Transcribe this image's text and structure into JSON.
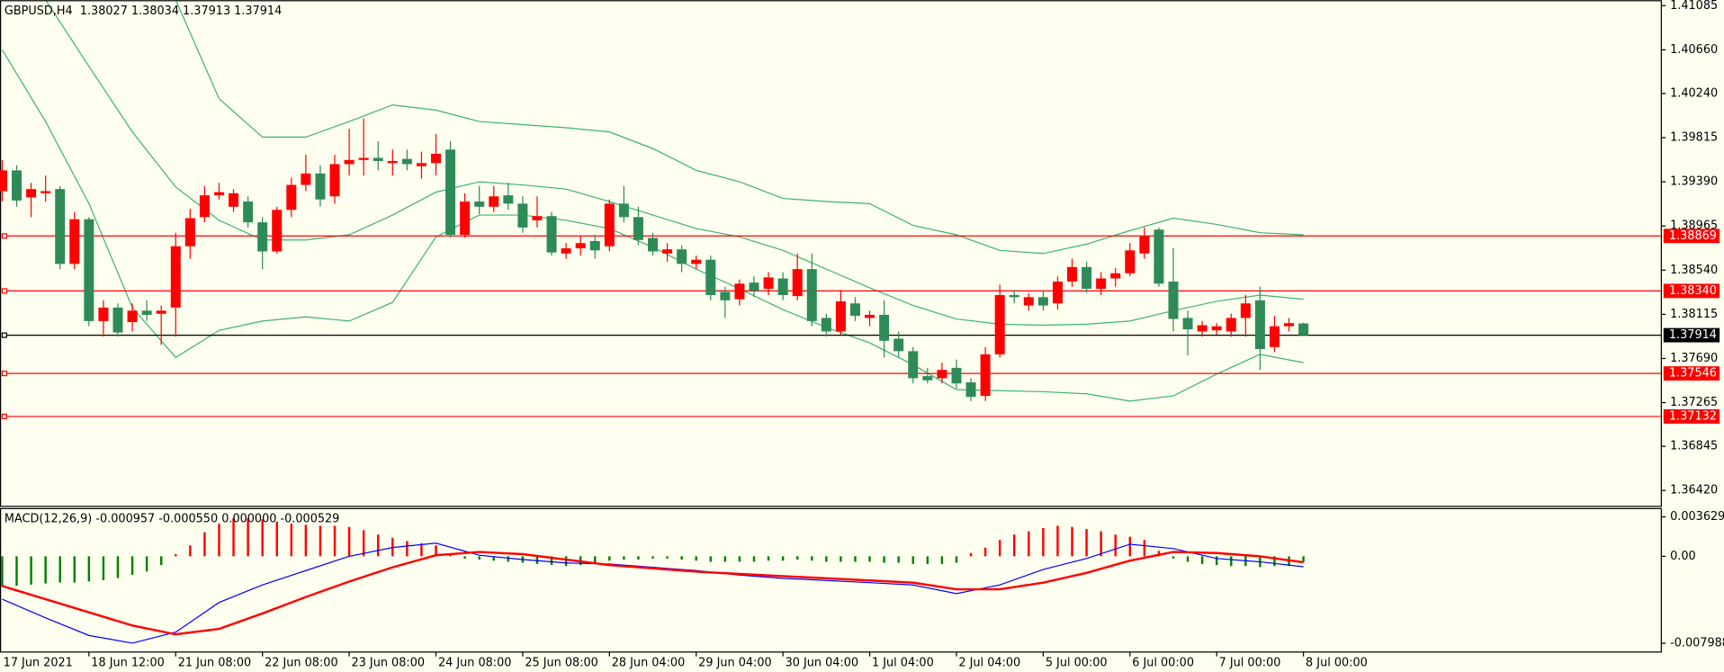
{
  "chart_data": [
    {
      "type": "candlestick",
      "title": "GBPUSD,H4  1.38027 1.38034 1.37913 1.37914",
      "categories": [
        "17 Jun 2021",
        null,
        null,
        null,
        null,
        null,
        "18 Jun 12:00",
        null,
        null,
        null,
        null,
        null,
        "21 Jun 08:00",
        null,
        null,
        null,
        null,
        null,
        "22 Jun 08:00",
        null,
        null,
        null,
        null,
        null,
        "23 Jun 08:00",
        null,
        null,
        null,
        null,
        null,
        "24 Jun 08:00",
        null,
        null,
        null,
        null,
        null,
        "25 Jun 08:00",
        null,
        null,
        null,
        null,
        null,
        "28 Jun 04:00",
        null,
        null,
        null,
        null,
        null,
        "29 Jun 04:00",
        null,
        null,
        null,
        null,
        null,
        "30 Jun 04:00",
        null,
        null,
        null,
        null,
        null,
        "1 Jul 04:00",
        null,
        null,
        null,
        null,
        null,
        "2 Jul 04:00",
        null,
        null,
        null,
        null,
        null,
        "5 Jul 00:00",
        null,
        null,
        null,
        null,
        null,
        "6 Jul 00:00",
        null,
        null,
        null,
        null,
        null,
        "7 Jul 00:00",
        null,
        null,
        null,
        null,
        null,
        "8 Jul 00:00"
      ],
      "open": [
        1.393,
        1.395,
        1.3924,
        1.3928,
        1.3932,
        1.386,
        1.3903,
        1.3805,
        1.3818,
        1.3804,
        1.3815,
        1.3812,
        1.3818,
        1.3877,
        1.3905,
        1.3926,
        1.3915,
        1.392,
        1.39,
        1.3872,
        1.3912,
        1.3936,
        1.3947,
        1.3925,
        1.3956,
        1.396,
        1.3962,
        1.3957,
        1.3961,
        1.3954,
        1.3957,
        1.397,
        1.3888,
        1.392,
        1.3915,
        1.3926,
        1.3918,
        1.3902,
        1.3906,
        1.387,
        1.3875,
        1.3882,
        1.3877,
        1.3918,
        1.3905,
        1.3885,
        1.387,
        1.3874,
        1.386,
        1.3864,
        1.3833,
        1.3826,
        1.3842,
        1.3836,
        1.3846,
        1.3829,
        1.3855,
        1.3808,
        1.3795,
        1.3822,
        1.3808,
        1.3811,
        1.3788,
        1.3776,
        1.3752,
        1.375,
        1.376,
        1.3746,
        1.3733,
        1.3773,
        1.383,
        1.382,
        1.3828,
        1.3822,
        1.3843,
        1.3857,
        1.3836,
        1.3846,
        1.3851,
        1.387,
        1.3893,
        1.3843,
        1.3808,
        1.3795,
        1.3796,
        1.3795,
        1.3808,
        1.3825,
        1.378,
        1.38,
        1.38027
      ],
      "high": [
        1.396,
        1.3955,
        1.3938,
        1.3945,
        1.3935,
        1.391,
        1.3905,
        1.3825,
        1.3822,
        1.3822,
        1.3825,
        1.382,
        1.389,
        1.3913,
        1.3935,
        1.3938,
        1.3932,
        1.3925,
        1.3905,
        1.3915,
        1.3943,
        1.3965,
        1.3955,
        1.3965,
        1.399,
        1.4,
        1.3978,
        1.397,
        1.397,
        1.3968,
        1.3985,
        1.3978,
        1.3928,
        1.3935,
        1.3935,
        1.3938,
        1.3925,
        1.3925,
        1.391,
        1.388,
        1.3887,
        1.3888,
        1.3922,
        1.3935,
        1.3915,
        1.389,
        1.388,
        1.3878,
        1.3868,
        1.3868,
        1.3838,
        1.3845,
        1.3848,
        1.3852,
        1.3852,
        1.387,
        1.387,
        1.3812,
        1.3835,
        1.3828,
        1.3815,
        1.3825,
        1.3795,
        1.378,
        1.376,
        1.3765,
        1.3768,
        1.375,
        1.378,
        1.384,
        1.3835,
        1.3832,
        1.3834,
        1.3848,
        1.3865,
        1.3862,
        1.3852,
        1.3856,
        1.388,
        1.3895,
        1.3895,
        1.3875,
        1.3815,
        1.3805,
        1.3803,
        1.3812,
        1.383,
        1.3838,
        1.381,
        1.3808,
        1.38034
      ],
      "low": [
        1.392,
        1.3915,
        1.3905,
        1.392,
        1.3855,
        1.3855,
        1.38,
        1.379,
        1.379,
        1.3795,
        1.3805,
        1.3782,
        1.379,
        1.3865,
        1.39,
        1.3922,
        1.391,
        1.3895,
        1.3855,
        1.387,
        1.3905,
        1.393,
        1.3915,
        1.3918,
        1.3945,
        1.3945,
        1.395,
        1.3945,
        1.395,
        1.3942,
        1.3945,
        1.3885,
        1.3885,
        1.3908,
        1.391,
        1.3912,
        1.389,
        1.3895,
        1.3868,
        1.3865,
        1.3868,
        1.3865,
        1.3872,
        1.39,
        1.3878,
        1.3868,
        1.3862,
        1.3852,
        1.3855,
        1.3825,
        1.3808,
        1.382,
        1.3828,
        1.383,
        1.3825,
        1.3825,
        1.38,
        1.379,
        1.3792,
        1.3805,
        1.38,
        1.377,
        1.377,
        1.3745,
        1.3745,
        1.3745,
        1.374,
        1.3728,
        1.3728,
        1.377,
        1.3822,
        1.3815,
        1.3815,
        1.3816,
        1.3838,
        1.3832,
        1.383,
        1.3838,
        1.3848,
        1.3865,
        1.3838,
        1.3795,
        1.3772,
        1.379,
        1.3792,
        1.379,
        1.379,
        1.3758,
        1.3775,
        1.3795,
        1.37913
      ],
      "close": [
        1.395,
        1.3921,
        1.3932,
        1.393,
        1.386,
        1.3903,
        1.3805,
        1.3818,
        1.3794,
        1.3815,
        1.3811,
        1.3815,
        1.3877,
        1.3904,
        1.3926,
        1.3929,
        1.3928,
        1.39,
        1.3872,
        1.3912,
        1.3936,
        1.3947,
        1.3922,
        1.3956,
        1.396,
        1.3962,
        1.3959,
        1.3959,
        1.3956,
        1.3957,
        1.3966,
        1.3888,
        1.392,
        1.3915,
        1.3925,
        1.3918,
        1.3895,
        1.3906,
        1.3871,
        1.3875,
        1.388,
        1.3873,
        1.3918,
        1.3905,
        1.3883,
        1.3872,
        1.3874,
        1.386,
        1.3864,
        1.383,
        1.3825,
        1.3841,
        1.3834,
        1.3847,
        1.383,
        1.3855,
        1.3805,
        1.3795,
        1.3824,
        1.381,
        1.3811,
        1.3786,
        1.3776,
        1.375,
        1.3748,
        1.3758,
        1.3745,
        1.3732,
        1.3773,
        1.383,
        1.3828,
        1.3828,
        1.382,
        1.3843,
        1.3857,
        1.3836,
        1.3846,
        1.3851,
        1.3873,
        1.3887,
        1.3841,
        1.3807,
        1.3797,
        1.3801,
        1.38,
        1.3808,
        1.3822,
        1.3778,
        1.38,
        1.3803,
        1.37914
      ],
      "up_color": "#ff0000",
      "down_color": "#2e8b57",
      "bands": {
        "color": "#3cb371",
        "x": [
          0,
          3,
          6,
          9,
          12,
          15,
          18,
          21,
          24,
          27,
          30,
          33,
          36,
          39,
          42,
          45,
          48,
          51,
          54,
          57,
          60,
          63,
          66,
          69,
          72,
          75,
          78,
          81,
          84,
          87,
          90
        ],
        "series": [
          {
            "values": [
              1.4325,
              1.4283,
              1.4241,
              1.4177,
              1.4114,
              1.4019,
              1.3982,
              1.3982,
              1.3997,
              1.4013,
              1.4008,
              1.3997,
              1.3994,
              1.3991,
              1.3987,
              1.3971,
              1.395,
              1.3939,
              1.3923,
              1.392,
              1.3918,
              1.3897,
              1.3888,
              1.3873,
              1.387,
              1.3879,
              1.3892,
              1.3904,
              1.3898,
              1.389,
              1.3888
            ]
          },
          {
            "values": [
              1.4177,
              1.4114,
              1.405,
              1.3987,
              1.3934,
              1.3902,
              1.3883,
              1.3883,
              1.3888,
              1.3907,
              1.3929,
              1.3939,
              1.3936,
              1.3932,
              1.392,
              1.3907,
              1.3894,
              1.3886,
              1.3873,
              1.3855,
              1.3837,
              1.382,
              1.3807,
              1.3802,
              1.3801,
              1.3802,
              1.3805,
              1.3815,
              1.3824,
              1.383,
              1.3826
            ]
          },
          {
            "values": [
              1.4066,
              1.3997,
              1.3918,
              1.3818,
              1.377,
              1.3796,
              1.3805,
              1.3809,
              1.3805,
              1.3823,
              1.3886,
              1.3907,
              1.3907,
              1.3902,
              1.3894,
              1.3876,
              1.3855,
              1.3836,
              1.3816,
              1.3799,
              1.3784,
              1.3763,
              1.3739,
              1.3738,
              1.3737,
              1.3735,
              1.3728,
              1.3733,
              1.3754,
              1.3773,
              1.3765
            ]
          }
        ]
      },
      "levels": [
        {
          "value": 1.38869,
          "color": "#ff0000"
        },
        {
          "value": 1.3834,
          "label": "1.38340",
          "color": "#ff0000"
        },
        {
          "value": 1.37546,
          "color": "#ff0000"
        },
        {
          "value": 1.37132,
          "color": "#ff0000"
        }
      ],
      "last_price": {
        "value": 1.37914,
        "color": "#000000"
      },
      "ylim": [
        1.36272,
        1.41127
      ],
      "yticks": [
        1.41085,
        {
          "value": 1.4066,
          "label": "1.40660"
        },
        {
          "value": 1.4024,
          "label": "1.40240"
        },
        1.39815,
        {
          "value": 1.3939,
          "label": "1.39390"
        },
        1.38965,
        {
          "value": 1.3854,
          "label": "1.38540"
        },
        1.38115,
        {
          "value": 1.3769,
          "label": "1.37690"
        },
        1.37265,
        1.36845,
        {
          "value": 1.3642,
          "label": "1.36420"
        }
      ]
    },
    {
      "type": "macd",
      "title": "MACD(12,26,9) -0.000957 -0.000550 0.000000 -0.000529",
      "histogram": {
        "up_color": "#ff0000",
        "down_color": "#008000",
        "values": [
          -0.0028,
          -0.0027,
          -0.0026,
          -0.0025,
          -0.0024,
          -0.0024,
          -0.0023,
          -0.0022,
          -0.002,
          -0.0017,
          -0.0014,
          -0.0008,
          0.0002,
          0.001,
          0.0022,
          0.003,
          0.0035,
          0.0035,
          0.0034,
          0.0032,
          0.003,
          0.0029,
          0.0028,
          0.0028,
          0.0027,
          0.0024,
          0.002,
          0.0017,
          0.0014,
          0.0012,
          0.001,
          0.0002,
          -0.0002,
          -0.0003,
          -0.0004,
          -0.0005,
          -0.0006,
          -0.0007,
          -0.0008,
          -0.0009,
          -0.0008,
          -0.0007,
          -0.0004,
          -0.0003,
          -0.0003,
          -0.0002,
          -0.0002,
          -0.0003,
          -0.0004,
          -0.0005,
          -0.0005,
          -0.0005,
          -0.0005,
          -0.0004,
          -0.0004,
          -0.0003,
          -0.0004,
          -0.0005,
          -0.0005,
          -0.0005,
          -0.0005,
          -0.0006,
          -0.0006,
          -0.0007,
          -0.0007,
          -0.0007,
          -0.0006,
          0.0003,
          0.0008,
          0.0015,
          0.002,
          0.0023,
          0.0026,
          0.0028,
          0.0027,
          0.0025,
          0.0023,
          0.002,
          0.0018,
          0.0015,
          0.0005,
          -0.0002,
          -0.0005,
          -0.0007,
          -0.0008,
          -0.0009,
          -0.0009,
          -0.001,
          -0.0009,
          -0.0009,
          -0.000529
        ]
      },
      "x": [
        0,
        3,
        6,
        9,
        12,
        15,
        18,
        21,
        24,
        27,
        30,
        33,
        36,
        39,
        42,
        45,
        48,
        51,
        54,
        57,
        60,
        63,
        66,
        69,
        72,
        75,
        78,
        81,
        84,
        87,
        90
      ],
      "series": [
        {
          "color": "#0000ff",
          "values": [
            -0.00394,
            -0.00566,
            -0.00727,
            -0.00798,
            -0.00697,
            -0.00424,
            -0.00263,
            -0.00131,
            0,
            0.00081,
            0.00121,
            0.0001,
            -0.0003,
            -0.00061,
            -0.00071,
            -0.00101,
            -0.00131,
            -0.00172,
            -0.00202,
            -0.00222,
            -0.00242,
            -0.00263,
            -0.00343,
            -0.00263,
            -0.00121,
            -0.0002,
            0.00111,
            0.00071,
            -0.0002,
            -0.00051,
            -0.000957
          ]
        },
        {
          "color": "#ff0000",
          "values": [
            -0.00273,
            -0.00394,
            -0.00515,
            -0.00636,
            -0.00717,
            -0.00667,
            -0.00525,
            -0.00374,
            -0.00232,
            -0.00101,
            0.0001,
            0.0004,
            0.0002,
            -0.0003,
            -0.00081,
            -0.00111,
            -0.00141,
            -0.00162,
            -0.00182,
            -0.00202,
            -0.00222,
            -0.00242,
            -0.00303,
            -0.00303,
            -0.00242,
            -0.00152,
            -0.0004,
            0.0004,
            0.0003,
            0,
            -0.00055
          ]
        }
      ],
      "ylim": [
        -0.008796,
        0.004336
      ],
      "yticks": [
        0.003629,
        {
          "value": 0,
          "label": "0.00"
        },
        -0.007988
      ]
    }
  ]
}
